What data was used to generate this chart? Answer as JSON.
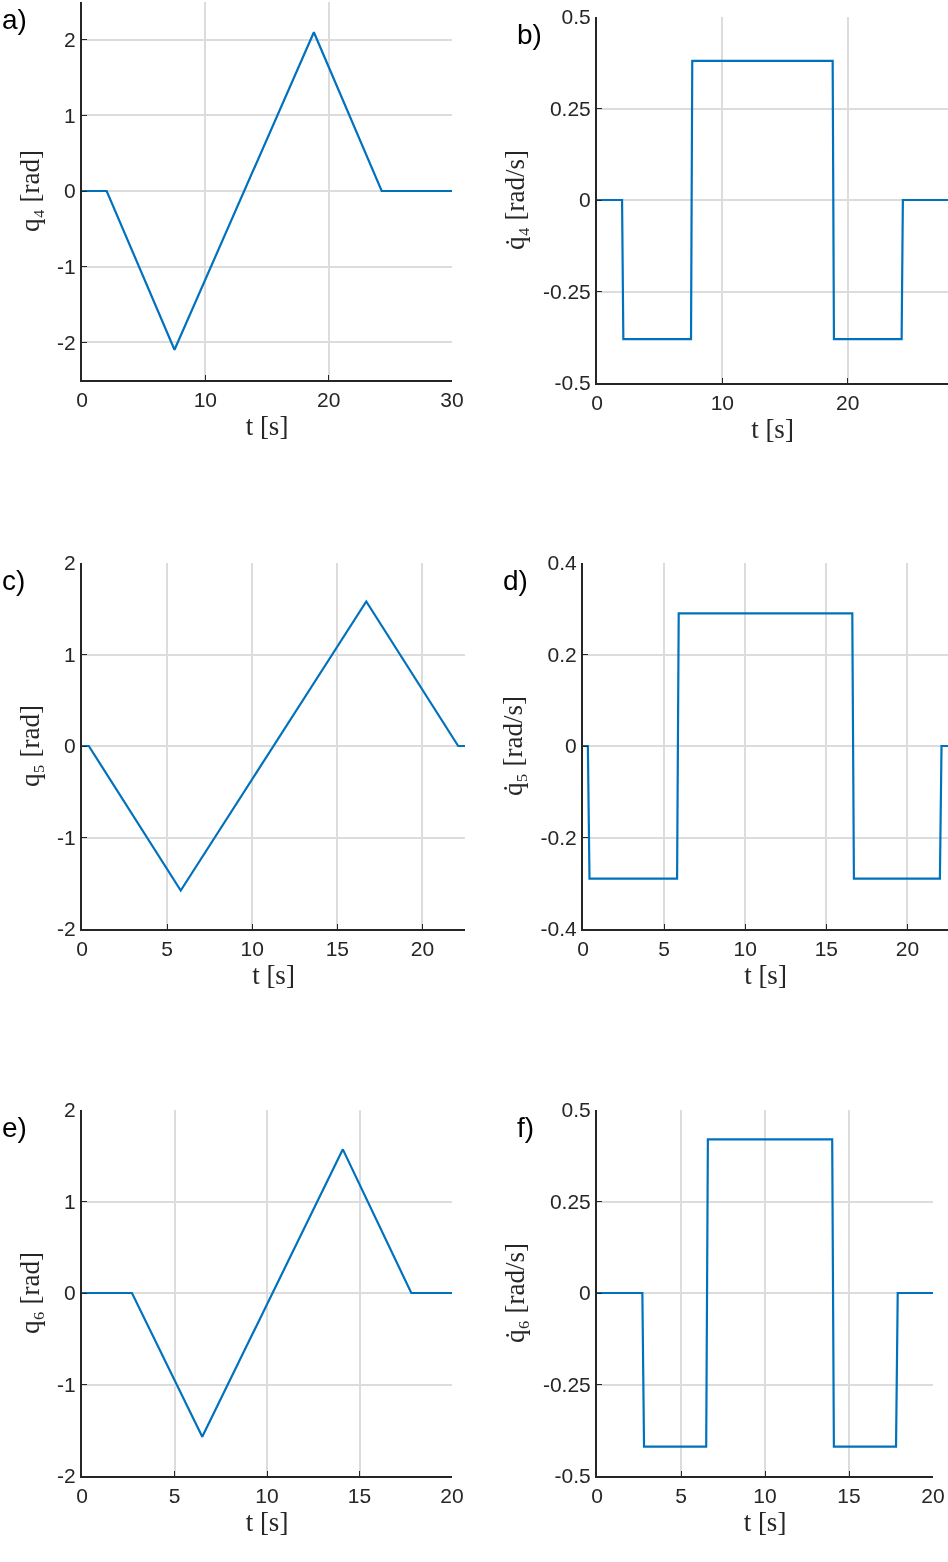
{
  "chart_data": [
    {
      "type": "line",
      "title": "a)",
      "xlabel": "t [s]",
      "ylabel": "q₄ [rad]",
      "xlim": [
        0,
        30
      ],
      "xticks": [
        0,
        10,
        20,
        30
      ],
      "ylim": [
        -2.5,
        2.5
      ],
      "yticks": [
        -2,
        -1,
        0,
        1,
        2
      ],
      "grid": true,
      "series": [
        {
          "color": "#0072bd",
          "x": [
            0,
            2,
            7.5,
            18.8,
            24.3,
            30
          ],
          "values": [
            0,
            0,
            -2.1,
            2.1,
            0,
            0
          ]
        }
      ]
    },
    {
      "type": "line",
      "title": "b)",
      "xlabel": "t [s]",
      "ylabel": "q̇₄ [rad/s]",
      "xlim": [
        0,
        28
      ],
      "xticks": [
        0,
        10,
        20
      ],
      "ylim": [
        -0.5,
        0.5
      ],
      "yticks": [
        -0.5,
        -0.25,
        0,
        0.25,
        0.5
      ],
      "grid": true,
      "series": [
        {
          "color": "#0072bd",
          "x": [
            0,
            2,
            2.1,
            7.5,
            7.6,
            18.8,
            18.9,
            24.3,
            24.4,
            28
          ],
          "values": [
            0,
            0,
            -0.38,
            -0.38,
            0.38,
            0.38,
            -0.38,
            -0.38,
            0,
            0
          ]
        }
      ]
    },
    {
      "type": "line",
      "title": "c)",
      "xlabel": "t [s]",
      "ylabel": "q₅ [rad]",
      "xlim": [
        0,
        22.5
      ],
      "xticks": [
        0,
        5,
        10,
        15,
        20
      ],
      "ylim": [
        -2,
        2
      ],
      "yticks": [
        -2,
        -1,
        0,
        1,
        2
      ],
      "grid": true,
      "series": [
        {
          "color": "#0072bd",
          "x": [
            0,
            0.4,
            5.8,
            16.7,
            22.1,
            22.5
          ],
          "values": [
            0,
            0,
            -1.58,
            1.58,
            0,
            0
          ]
        }
      ]
    },
    {
      "type": "line",
      "title": "d)",
      "xlabel": "t [s]",
      "ylabel": "q̇₅ [rad/s]",
      "xlim": [
        0,
        22.5
      ],
      "xticks": [
        0,
        5,
        10,
        15,
        20
      ],
      "ylim": [
        -0.4,
        0.4
      ],
      "yticks": [
        -0.4,
        -0.2,
        0,
        0.2,
        0.4
      ],
      "grid": true,
      "series": [
        {
          "color": "#0072bd",
          "x": [
            0,
            0.3,
            0.4,
            5.8,
            5.9,
            16.6,
            16.7,
            22.0,
            22.1,
            22.5
          ],
          "values": [
            0,
            0,
            -0.29,
            -0.29,
            0.29,
            0.29,
            -0.29,
            -0.29,
            0,
            0
          ]
        }
      ]
    },
    {
      "type": "line",
      "title": "e)",
      "xlabel": "t [s]",
      "ylabel": "q₆ [rad]",
      "xlim": [
        0,
        20
      ],
      "xticks": [
        0,
        5,
        10,
        15,
        20
      ],
      "ylim": [
        -2,
        2
      ],
      "yticks": [
        -2,
        -1,
        0,
        1,
        2
      ],
      "grid": true,
      "series": [
        {
          "color": "#0072bd",
          "x": [
            0,
            2.7,
            6.5,
            14.1,
            17.8,
            20
          ],
          "values": [
            0,
            0,
            -1.57,
            1.57,
            0,
            0
          ]
        }
      ]
    },
    {
      "type": "line",
      "title": "f)",
      "xlabel": "t [s]",
      "ylabel": "q̇₆ [rad/s]",
      "xlim": [
        0,
        20
      ],
      "xticks": [
        0,
        5,
        10,
        15,
        20
      ],
      "ylim": [
        -0.5,
        0.5
      ],
      "yticks": [
        -0.5,
        -0.25,
        0,
        0.25,
        0.5
      ],
      "grid": true,
      "series": [
        {
          "color": "#0072bd",
          "x": [
            0,
            2.7,
            2.8,
            6.5,
            6.6,
            14.0,
            14.1,
            17.8,
            17.9,
            20
          ],
          "values": [
            0,
            0,
            -0.42,
            -0.42,
            0.42,
            0.42,
            -0.42,
            -0.42,
            0,
            0
          ]
        }
      ]
    }
  ]
}
